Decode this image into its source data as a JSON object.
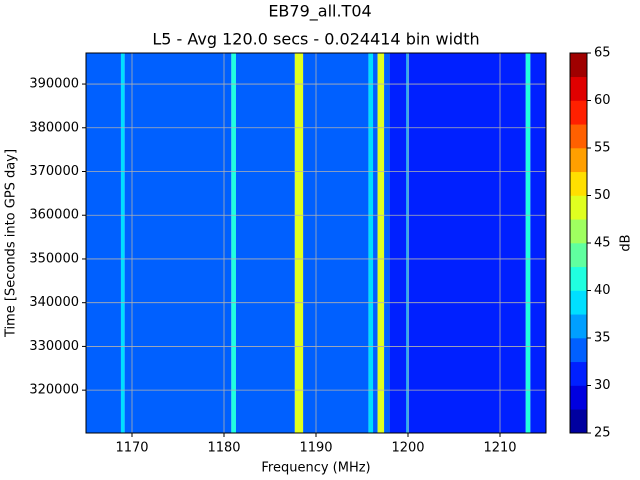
{
  "chart_data": {
    "type": "heatmap",
    "title": "EB79_all.T04",
    "subtitle": "L5 - Avg 120.0 secs - 0.024414 bin width",
    "xlabel": "Frequency (MHz)",
    "ylabel": "Time [Seconds into GPS day]",
    "x_edges": [
      1165,
      1168.8,
      1169.2,
      1180.8,
      1181.3,
      1187.7,
      1188.6,
      1195.7,
      1196.2,
      1196.7,
      1197.4,
      1198.0,
      1199.8,
      1200.1,
      1212.8,
      1213.3,
      1215
    ],
    "values": [
      33.75,
      38,
      33.75,
      42,
      33.75,
      48,
      33.75,
      38,
      33.75,
      48,
      33.75,
      31,
      36,
      31,
      42,
      31
    ],
    "xlim": [
      1165,
      1215
    ],
    "xticks": [
      1170,
      1180,
      1190,
      1200,
      1210
    ],
    "ylim": [
      310200,
      397100
    ],
    "yticks": [
      320000,
      330000,
      340000,
      350000,
      360000,
      370000,
      380000,
      390000
    ],
    "grid": true,
    "colormap": "jet",
    "clim": [
      25,
      65
    ],
    "levels": 16,
    "cticks": [
      25,
      30,
      35,
      40,
      45,
      50,
      55,
      60,
      65
    ],
    "clabel": "dB"
  }
}
